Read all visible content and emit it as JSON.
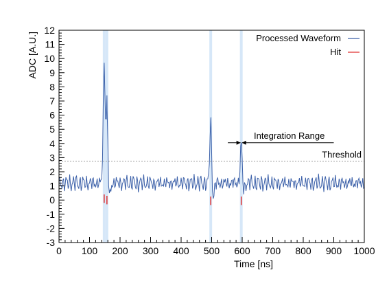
{
  "chart_data": {
    "type": "line",
    "xlabel": "Time [ns]",
    "ylabel": "ADC [A.U.]",
    "xlim": [
      0,
      1000
    ],
    "ylim": [
      -3,
      12
    ],
    "x_ticks": [
      0,
      100,
      200,
      300,
      400,
      500,
      600,
      700,
      800,
      900,
      1000
    ],
    "y_ticks": [
      -3,
      -2,
      -1,
      0,
      1,
      2,
      3,
      4,
      5,
      6,
      7,
      8,
      9,
      10,
      11,
      12
    ],
    "grid": false,
    "legend_position": "top-right",
    "series": [
      {
        "name": "Processed Waveform",
        "color": "#3a5fa8",
        "baseline": 1.2,
        "noise_amplitude": 0.45,
        "sample_spacing": 2.5,
        "peaks": [
          {
            "x": 148,
            "y": 9.7
          },
          {
            "x": 157,
            "y": 7.4
          },
          {
            "x": 497,
            "y": 5.65
          },
          {
            "x": 597,
            "y": 4.05
          }
        ]
      },
      {
        "name": "Hit",
        "color": "#e03030",
        "x": [
          148,
          157,
          497,
          597
        ],
        "y": [
          0.1,
          0.0,
          -0.05,
          -0.05
        ]
      }
    ],
    "threshold": {
      "label": "Threshold",
      "value": 2.75,
      "color": "#999999"
    },
    "hit_bands": {
      "color": "#cfe3f7",
      "centers": [
        148,
        157,
        497,
        597
      ]
    },
    "integration_range": {
      "label": "Integration Range",
      "x_start": 553,
      "x_end": 900,
      "y": 4.0,
      "marker_x": 597
    }
  }
}
